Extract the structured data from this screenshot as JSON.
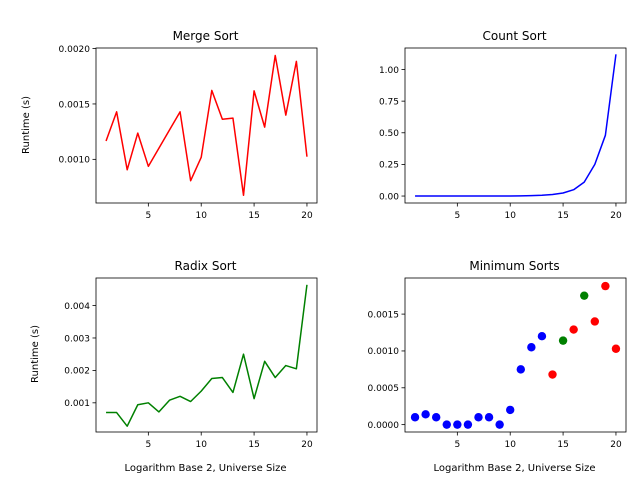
{
  "chart_data": [
    {
      "type": "line",
      "title": "Merge Sort",
      "xlabel": "",
      "ylabel": "Runtime (s)",
      "xlim": [
        0.05,
        20.95
      ],
      "ylim": [
        0.000606,
        0.002005
      ],
      "xticks": [
        5,
        10,
        15,
        20
      ],
      "xtick_labels": [
        "5",
        "10",
        "15",
        "20"
      ],
      "yticks": [
        0.001,
        0.0015,
        0.002
      ],
      "ytick_labels": [
        "0.0010",
        "0.0015",
        "0.0020"
      ],
      "grid": false,
      "series": [
        {
          "color": "#ff0000",
          "marker": "none",
          "x": [
            1,
            2,
            3,
            4,
            5,
            8,
            9,
            10,
            11,
            12,
            13,
            14,
            15,
            16,
            17,
            18,
            19,
            20
          ],
          "y": [
            0.001166,
            0.001429,
            0.000906,
            0.001237,
            0.000937,
            0.001429,
            0.000807,
            0.001018,
            0.001622,
            0.001362,
            0.001372,
            0.000676,
            0.001618,
            0.001291,
            0.001937,
            0.001399,
            0.001884,
            0.001024
          ]
        }
      ]
    },
    {
      "type": "line",
      "title": "Count Sort",
      "xlabel": "",
      "ylabel": "",
      "xlim": [
        0.05,
        20.95
      ],
      "ylim": [
        -0.055,
        1.17
      ],
      "xticks": [
        5,
        10,
        15,
        20
      ],
      "xtick_labels": [
        "5",
        "10",
        "15",
        "20"
      ],
      "yticks": [
        0.0,
        0.25,
        0.5,
        0.75,
        1.0
      ],
      "ytick_labels": [
        "0.00",
        "0.25",
        "0.50",
        "0.75",
        "1.00"
      ],
      "grid": false,
      "series": [
        {
          "color": "#0000ff",
          "marker": "none",
          "x": [
            1,
            2,
            3,
            4,
            5,
            6,
            7,
            8,
            9,
            10,
            11,
            12,
            13,
            14,
            15,
            16,
            17,
            18,
            19,
            20
          ],
          "y": [
            0.0001,
            0.0001,
            0.0001,
            0.0001,
            0.0001,
            0.0001,
            0.0001,
            0.0002,
            0.0004,
            0.0008,
            0.0015,
            0.003,
            0.006,
            0.012,
            0.024,
            0.05,
            0.11,
            0.25,
            0.48,
            1.12
          ]
        }
      ]
    },
    {
      "type": "line",
      "title": "Radix Sort",
      "xlabel": "Logarithm Base 2, Universe Size",
      "ylabel": "Runtime (s)",
      "xlim": [
        0.05,
        20.95
      ],
      "ylim": [
        0.0001,
        0.00485
      ],
      "xticks": [
        5,
        10,
        15,
        20
      ],
      "xtick_labels": [
        "5",
        "10",
        "15",
        "20"
      ],
      "yticks": [
        0.001,
        0.002,
        0.003,
        0.004
      ],
      "ytick_labels": [
        "0.001",
        "0.002",
        "0.003",
        "0.004"
      ],
      "grid": false,
      "series": [
        {
          "color": "#008000",
          "marker": "none",
          "x": [
            1,
            2,
            3,
            4,
            5,
            6,
            7,
            8,
            9,
            10,
            11,
            12,
            13,
            14,
            15,
            16,
            17,
            18,
            19,
            20
          ],
          "y": [
            0.0007,
            0.0007,
            0.00028,
            0.00094,
            0.001,
            0.00072,
            0.00108,
            0.0012,
            0.00104,
            0.00136,
            0.00175,
            0.00178,
            0.00132,
            0.0025,
            0.00113,
            0.00228,
            0.00178,
            0.00215,
            0.00205,
            0.00464
          ]
        }
      ]
    },
    {
      "type": "scatter",
      "title": "Minimum Sorts",
      "xlabel": "Logarithm Base 2, Universe Size",
      "ylabel": "",
      "xlim": [
        0.05,
        20.95
      ],
      "ylim": [
        -0.0001,
        0.00199
      ],
      "xticks": [
        5,
        10,
        15,
        20
      ],
      "xtick_labels": [
        "5",
        "10",
        "15",
        "20"
      ],
      "yticks": [
        0.0,
        0.0005,
        0.001,
        0.0015
      ],
      "ytick_labels": [
        "0.0000",
        "0.0005",
        "0.0010",
        "0.0015"
      ],
      "grid": false,
      "series": [
        {
          "color": "#0000ff",
          "marker": "circle",
          "x": [
            1,
            2,
            3,
            4,
            5,
            6,
            7,
            8,
            9,
            10,
            11,
            12,
            13
          ],
          "y": [
            0.0001,
            0.00014,
            0.0001,
            0.0,
            0.0,
            0.0,
            0.0001,
            0.0001,
            0.0,
            0.0002,
            0.00075,
            0.00105,
            0.0012
          ]
        },
        {
          "color": "#008000",
          "marker": "circle",
          "x": [
            15,
            17
          ],
          "y": [
            0.00114,
            0.00175
          ]
        },
        {
          "color": "#ff0000",
          "marker": "circle",
          "x": [
            14,
            16,
            18,
            19,
            20
          ],
          "y": [
            0.00068,
            0.00129,
            0.0014,
            0.00188,
            0.00103
          ]
        }
      ]
    }
  ]
}
